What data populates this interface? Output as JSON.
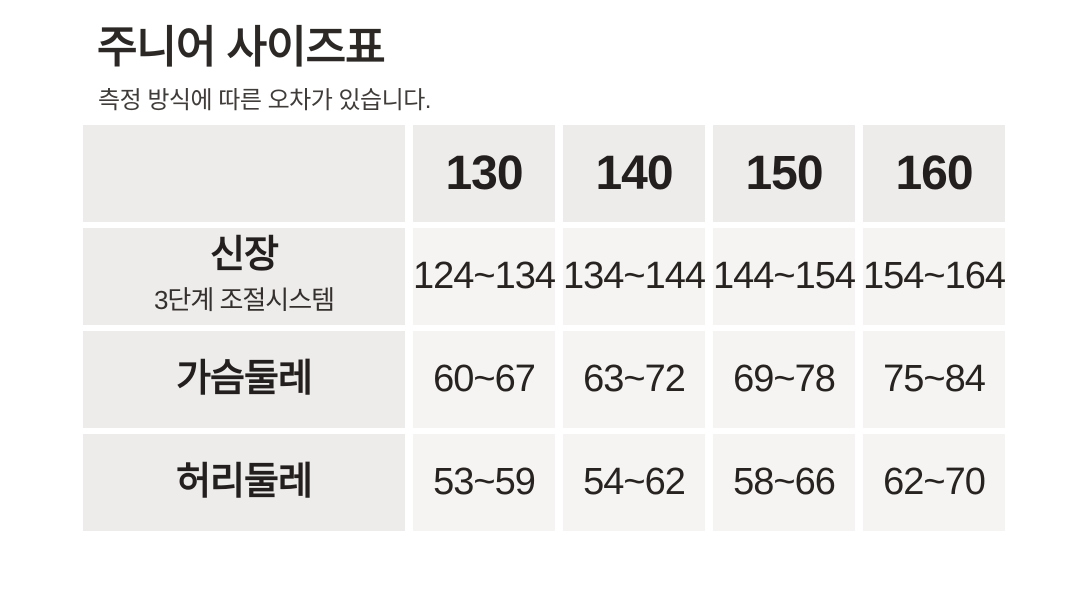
{
  "page": {
    "title": "주니어 사이즈표",
    "subtitle": "측정 방식에 따른 오차가 있습니다."
  },
  "table": {
    "columns": [
      "130",
      "140",
      "150",
      "160"
    ],
    "rows": [
      {
        "label": "신장",
        "sublabel": "3단계 조절시스템",
        "values": [
          "124~134",
          "134~144",
          "144~154",
          "154~164"
        ]
      },
      {
        "label": "가슴둘레",
        "values": [
          "60~67",
          "63~72",
          "69~78",
          "75~84"
        ]
      },
      {
        "label": "허리둘레",
        "values": [
          "53~59",
          "54~62",
          "58~66",
          "62~70"
        ]
      }
    ]
  },
  "chart_data": {
    "type": "table",
    "title": "주니어 사이즈표",
    "note": "측정 방식에 따른 오차가 있습니다.",
    "columns": [
      "130",
      "140",
      "150",
      "160"
    ],
    "rows": [
      {
        "label": "신장 (3단계 조절시스템)",
        "values": [
          "124~134",
          "134~144",
          "144~154",
          "154~164"
        ]
      },
      {
        "label": "가슴둘레",
        "values": [
          "60~67",
          "63~72",
          "69~78",
          "75~84"
        ]
      },
      {
        "label": "허리둘레",
        "values": [
          "53~59",
          "54~62",
          "58~66",
          "62~70"
        ]
      }
    ]
  },
  "colors": {
    "header_cell_bg": "#eeeceb",
    "value_cell_bg": "#f5f4f3",
    "text_dark": "#231f1e",
    "page_bg": "#ffffff"
  }
}
